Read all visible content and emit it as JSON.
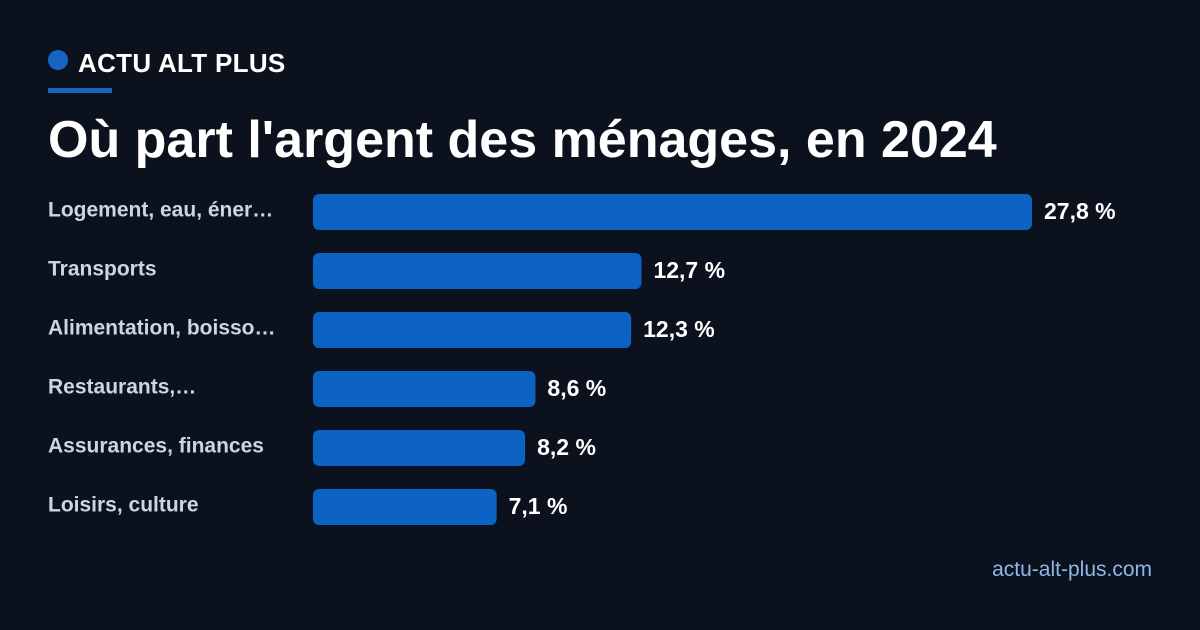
{
  "brand": {
    "name": "ACTU ALT PLUS",
    "accent_color": "#1565c0"
  },
  "source": "actu-alt-plus.com",
  "chart_data": {
    "type": "bar",
    "orientation": "horizontal",
    "title": "Où part l'argent des ménages, en 2024",
    "categories": [
      "Logement, eau, éner…",
      "Transports",
      "Alimentation, boisso…",
      "Restaurants,…",
      "Assurances, finances",
      "Loisirs, culture"
    ],
    "values": [
      27.8,
      12.7,
      12.3,
      8.6,
      8.2,
      7.1
    ],
    "value_labels": [
      "27,8 %",
      "12,7 %",
      "12,3 %",
      "8,6 %",
      "8,2 %",
      "7,1 %"
    ],
    "unit": "%",
    "xlim": [
      0,
      27.8
    ],
    "grid": false,
    "legend": "none",
    "bar_color": "#0d63c4"
  }
}
